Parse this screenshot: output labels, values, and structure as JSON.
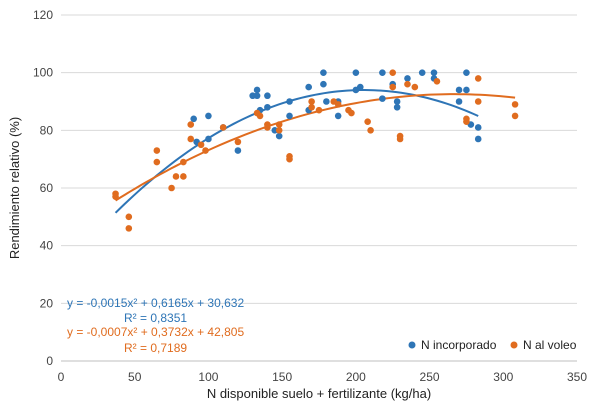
{
  "chart_data": {
    "type": "scatter",
    "xlabel": "N disponible suelo + fertilizante (kg/ha)",
    "ylabel": "Rendimiento relativo (%)",
    "xlim": [
      0,
      350
    ],
    "ylim": [
      0,
      120
    ],
    "x_ticks": [
      "0",
      "50",
      "100",
      "150",
      "200",
      "250",
      "300",
      "350"
    ],
    "y_ticks": [
      "0",
      "20",
      "40",
      "60",
      "80",
      "100",
      "120"
    ],
    "grid": "horizontal",
    "legend_position": "bottom-right",
    "series": [
      {
        "name": "N incorporado",
        "color": "#2e75b6",
        "points": [
          [
            90,
            84
          ],
          [
            92,
            76
          ],
          [
            100,
            85
          ],
          [
            100,
            77
          ],
          [
            110,
            81
          ],
          [
            120,
            73
          ],
          [
            130,
            92
          ],
          [
            133,
            94
          ],
          [
            133,
            92
          ],
          [
            135,
            87
          ],
          [
            140,
            92
          ],
          [
            140,
            88
          ],
          [
            145,
            80
          ],
          [
            148,
            78
          ],
          [
            155,
            90
          ],
          [
            155,
            85
          ],
          [
            168,
            95
          ],
          [
            168,
            87
          ],
          [
            178,
            96
          ],
          [
            178,
            100
          ],
          [
            180,
            90
          ],
          [
            188,
            90
          ],
          [
            188,
            85
          ],
          [
            200,
            100
          ],
          [
            200,
            94
          ],
          [
            203,
            95
          ],
          [
            218,
            100
          ],
          [
            218,
            91
          ],
          [
            225,
            96
          ],
          [
            228,
            90
          ],
          [
            228,
            88
          ],
          [
            235,
            98
          ],
          [
            245,
            100
          ],
          [
            253,
            100
          ],
          [
            253,
            98
          ],
          [
            270,
            94
          ],
          [
            270,
            90
          ],
          [
            275,
            94
          ],
          [
            275,
            100
          ],
          [
            278,
            82
          ],
          [
            283,
            77
          ],
          [
            283,
            81
          ]
        ],
        "trendline": {
          "a": -0.0015,
          "b": 0.6165,
          "c": 30.632,
          "x_range": [
            37,
            283
          ]
        },
        "equation": "y = -0,0015x² + 0,6165x + 30,632",
        "r2": "R² = 0,8351"
      },
      {
        "name": "N al voleo",
        "color": "#e06c1f",
        "points": [
          [
            37,
            58
          ],
          [
            37,
            57
          ],
          [
            46,
            50
          ],
          [
            46,
            46
          ],
          [
            65,
            73
          ],
          [
            65,
            69
          ],
          [
            75,
            60
          ],
          [
            78,
            64
          ],
          [
            83,
            69
          ],
          [
            83,
            64
          ],
          [
            88,
            82
          ],
          [
            88,
            77
          ],
          [
            95,
            75
          ],
          [
            98,
            73
          ],
          [
            110,
            81
          ],
          [
            120,
            76
          ],
          [
            133,
            86
          ],
          [
            135,
            85
          ],
          [
            140,
            81
          ],
          [
            140,
            82
          ],
          [
            148,
            82
          ],
          [
            148,
            80
          ],
          [
            155,
            71
          ],
          [
            155,
            70
          ],
          [
            170,
            90
          ],
          [
            170,
            88
          ],
          [
            175,
            87
          ],
          [
            185,
            90
          ],
          [
            188,
            89
          ],
          [
            195,
            87
          ],
          [
            197,
            86
          ],
          [
            208,
            83
          ],
          [
            210,
            80
          ],
          [
            225,
            100
          ],
          [
            225,
            95
          ],
          [
            230,
            78
          ],
          [
            230,
            77
          ],
          [
            235,
            96
          ],
          [
            240,
            95
          ],
          [
            255,
            97
          ],
          [
            275,
            84
          ],
          [
            275,
            83
          ],
          [
            283,
            98
          ],
          [
            283,
            90
          ],
          [
            308,
            89
          ],
          [
            308,
            85
          ]
        ],
        "trendline": {
          "a": -0.0007,
          "b": 0.3732,
          "c": 42.805,
          "x_range": [
            37,
            308
          ]
        },
        "equation": "y = -0,0007x² + 0,3732x + 42,805",
        "r2": "R² = 0,7189"
      }
    ]
  }
}
